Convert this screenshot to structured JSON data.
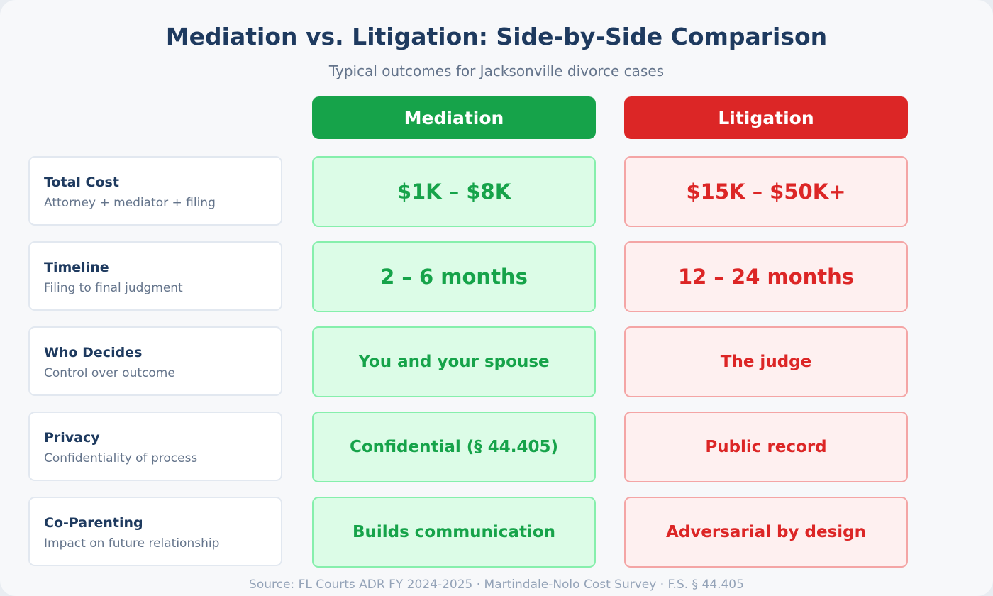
{
  "header": {
    "title": "Mediation vs. Litigation: Side-by-Side Comparison",
    "subtitle": "Typical outcomes for Jacksonville divorce cases"
  },
  "table": {
    "columns": [
      "Mediation",
      "Litigation"
    ],
    "rows": [
      {
        "label": "Total Cost",
        "description": "Attorney + mediator + filing",
        "mediation": "$1K – $8K",
        "litigation": "$15K – $50K+"
      },
      {
        "label": "Timeline",
        "description": "Filing to final judgment",
        "mediation": "2 – 6 months",
        "litigation": "12 – 24 months"
      },
      {
        "label": "Who Decides",
        "description": "Control over outcome",
        "mediation": "You and your spouse",
        "litigation": "The judge"
      },
      {
        "label": "Privacy",
        "description": "Confidentiality of process",
        "mediation": "Confidential (§ 44.405)",
        "litigation": "Public record"
      },
      {
        "label": "Co-Parenting",
        "description": "Impact on future relationship",
        "mediation": "Builds communication",
        "litigation": "Adversarial by design"
      }
    ]
  },
  "footer": {
    "source": "Source: FL Courts ADR FY 2024-2025 · Martindale-Nolo Cost Survey · F.S. § 44.405"
  }
}
